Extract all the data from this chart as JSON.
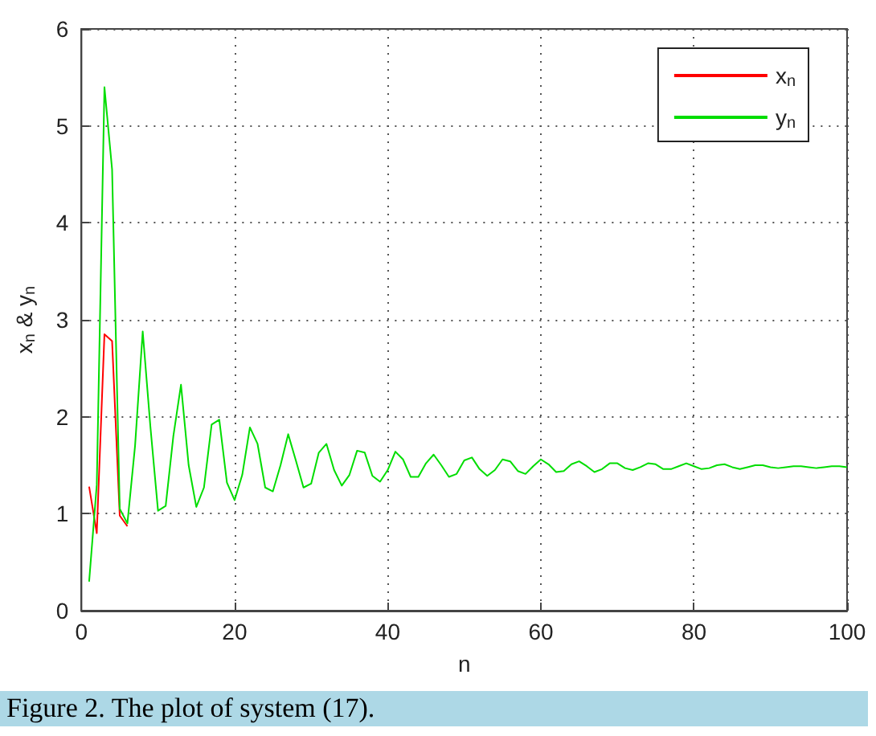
{
  "chart_data": {
    "type": "line",
    "xlabel": "n",
    "ylabel": "x$_{n}$ & y$_{n}$",
    "annotations": [
      "Figure 2. The plot of system (17)."
    ],
    "x": [
      1,
      2,
      3,
      4,
      5,
      6,
      7,
      8,
      9,
      10,
      11,
      12,
      13,
      14,
      15,
      16,
      17,
      18,
      19,
      20,
      21,
      22,
      23,
      24,
      25,
      26,
      27,
      28,
      29,
      30,
      31,
      32,
      33,
      34,
      35,
      36,
      37,
      38,
      39,
      40,
      41,
      42,
      43,
      44,
      45,
      46,
      47,
      48,
      49,
      50,
      51,
      52,
      53,
      54,
      55,
      56,
      57,
      58,
      59,
      60,
      61,
      62,
      63,
      64,
      65,
      66,
      67,
      68,
      69,
      70,
      71,
      72,
      73,
      74,
      75,
      76,
      77,
      78,
      79,
      80,
      81,
      82,
      83,
      84,
      85,
      86,
      87,
      88,
      89,
      90,
      91,
      92,
      93,
      94,
      95,
      96,
      97,
      98,
      99,
      100
    ],
    "series": [
      {
        "name": "x$_{n}$",
        "color": "#ff0000",
        "x": [
          1,
          2,
          3,
          4,
          5,
          6
        ],
        "values": [
          1.28,
          0.8,
          2.85,
          2.78,
          0.98,
          0.87
        ]
      },
      {
        "name": "y$_{n}$",
        "color": "#00dd00",
        "values": [
          0.3,
          1.3,
          5.4,
          4.55,
          1.05,
          0.9,
          1.7,
          2.88,
          1.9,
          1.03,
          1.08,
          1.8,
          2.33,
          1.5,
          1.07,
          1.27,
          1.92,
          1.97,
          1.32,
          1.14,
          1.4,
          1.89,
          1.72,
          1.27,
          1.23,
          1.5,
          1.82,
          1.55,
          1.27,
          1.31,
          1.63,
          1.72,
          1.45,
          1.29,
          1.4,
          1.65,
          1.63,
          1.39,
          1.33,
          1.45,
          1.64,
          1.56,
          1.38,
          1.38,
          1.52,
          1.61,
          1.5,
          1.38,
          1.41,
          1.55,
          1.58,
          1.46,
          1.39,
          1.45,
          1.56,
          1.54,
          1.44,
          1.41,
          1.49,
          1.56,
          1.51,
          1.43,
          1.44,
          1.51,
          1.54,
          1.49,
          1.43,
          1.46,
          1.52,
          1.52,
          1.47,
          1.45,
          1.48,
          1.52,
          1.51,
          1.46,
          1.46,
          1.49,
          1.52,
          1.49,
          1.46,
          1.47,
          1.5,
          1.51,
          1.48,
          1.46,
          1.48,
          1.5,
          1.5,
          1.48,
          1.47,
          1.48,
          1.49,
          1.49,
          1.48,
          1.47,
          1.48,
          1.49,
          1.49,
          1.48
        ]
      }
    ],
    "xlim": [
      0,
      100
    ],
    "xticks": [
      0,
      20,
      40,
      60,
      80,
      100
    ],
    "ylim": [
      0,
      6
    ],
    "yticks": [
      0,
      1,
      2,
      3,
      4,
      5,
      6
    ],
    "grid": true,
    "legend": "top right",
    "marker": "none",
    "line_style": "solid"
  }
}
